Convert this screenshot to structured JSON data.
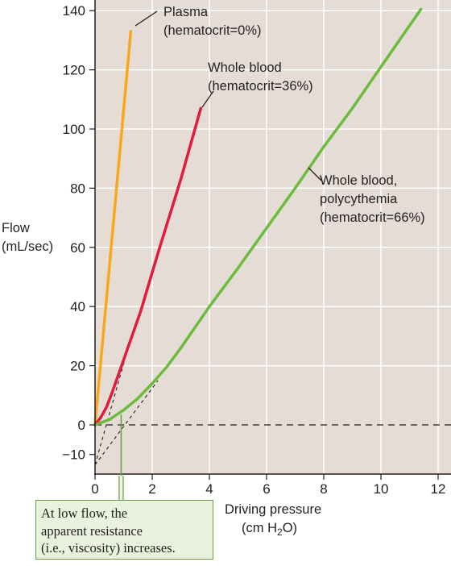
{
  "chart_data": {
    "type": "line",
    "ylabel": [
      "Flow",
      "(mL/sec)"
    ],
    "xlabel": [
      "Driving pressure",
      "(cm H",
      "2",
      "O)"
    ],
    "xlim": [
      0,
      12
    ],
    "ylim": [
      -15,
      143
    ],
    "xticks": [
      0,
      2,
      4,
      6,
      8,
      10,
      12
    ],
    "yticks": [
      {
        "value": 140,
        "label": "140"
      },
      {
        "value": 120,
        "label": "120"
      },
      {
        "value": 100,
        "label": "100"
      },
      {
        "value": 80,
        "label": "80"
      },
      {
        "value": 60,
        "label": "60"
      },
      {
        "value": 40,
        "label": "40"
      },
      {
        "value": 20,
        "label": "20"
      },
      {
        "value": 0,
        "label": "0"
      },
      {
        "value": -10,
        "label": "−10"
      }
    ],
    "grid": true,
    "series": [
      {
        "name": "Plasma (hematocrit=0%)",
        "label_lines": [
          "Plasma",
          "(hematocrit=0%)"
        ],
        "color": "#f7a81b",
        "points": [
          [
            0,
            0
          ],
          [
            1.25,
            133
          ]
        ]
      },
      {
        "name": "Whole blood (hematocrit=36%)",
        "label_lines": [
          "Whole blood",
          "(hematocrit=36%)"
        ],
        "color": "#e31b3b",
        "points": [
          [
            0,
            0
          ],
          [
            0.2,
            2.5
          ],
          [
            0.4,
            6
          ],
          [
            0.6,
            11
          ],
          [
            0.8,
            16.5
          ],
          [
            1.0,
            22
          ],
          [
            1.2,
            27.5
          ],
          [
            1.6,
            38.5
          ],
          [
            2.2,
            58
          ],
          [
            3.0,
            83
          ],
          [
            3.7,
            107
          ]
        ]
      },
      {
        "name": "Whole blood, polycythemia (hematocrit=66%)",
        "label_lines": [
          "Whole blood,",
          "polycythemia",
          "(hematocrit=66%)"
        ],
        "color": "#6cbb3c",
        "points": [
          [
            0,
            0
          ],
          [
            0.5,
            1.8
          ],
          [
            1.0,
            5
          ],
          [
            1.5,
            9
          ],
          [
            2.0,
            14
          ],
          [
            2.5,
            19.5
          ],
          [
            3.0,
            26
          ],
          [
            3.5,
            33
          ],
          [
            4.0,
            40
          ],
          [
            5.0,
            53
          ],
          [
            6.0,
            66.5
          ],
          [
            7.0,
            80
          ],
          [
            8.0,
            94
          ],
          [
            9.0,
            107
          ],
          [
            10.0,
            121
          ],
          [
            11.4,
            140.5
          ]
        ]
      }
    ],
    "reference_lines": [
      {
        "kind": "horizontal-dashed",
        "y": 0,
        "x_from": 0,
        "x_to": 12
      },
      {
        "kind": "extrapolation-dashed",
        "points": [
          [
            0,
            -13.5
          ],
          [
            1.2,
            27.5
          ]
        ]
      },
      {
        "kind": "extrapolation-dashed",
        "points": [
          [
            0,
            -13.5
          ],
          [
            2.2,
            15
          ]
        ]
      }
    ],
    "annotation": {
      "lines": [
        "At low flow, the",
        "apparent resistance",
        "(i.e., viscosity) increases."
      ],
      "points_to": [
        0.9,
        3.5
      ]
    }
  },
  "colors": {
    "plot_background": "#e5ddd5",
    "gridline": "#ffffff",
    "axis": "#231f20",
    "callout_fill": "#e9f2dc",
    "callout_border": "#6d9b45"
  }
}
